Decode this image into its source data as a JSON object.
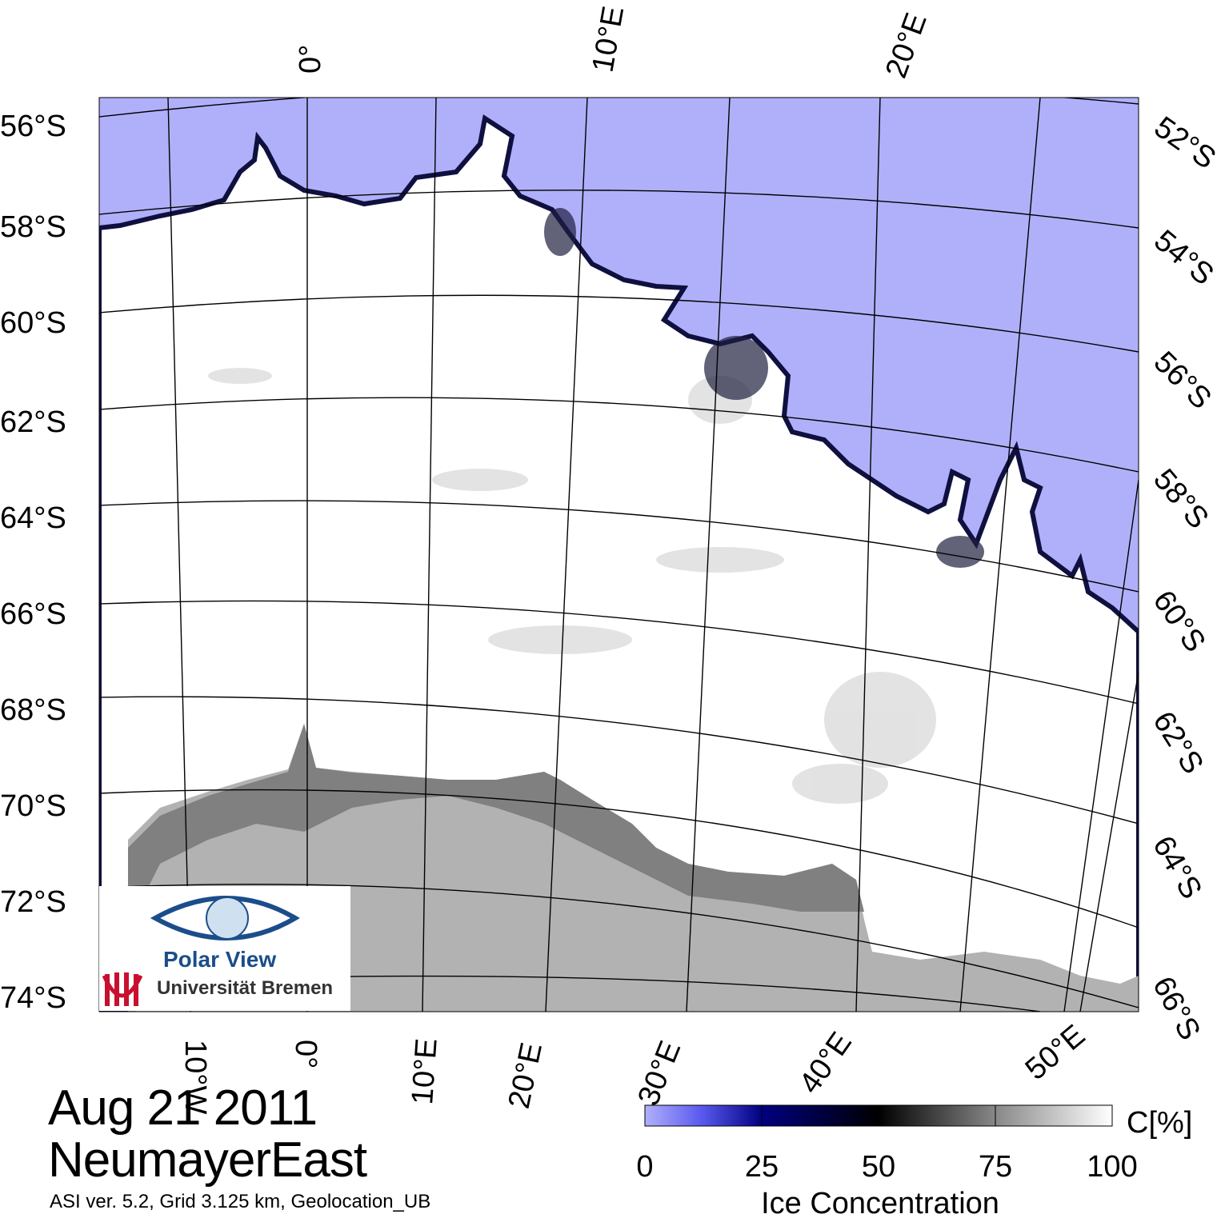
{
  "map": {
    "date_label": "Aug 21 2011",
    "region_label": "NeumayerEast",
    "meta_label": "ASI ver. 5.2,  Grid 3.125 km, Geolocation_UB",
    "latitude_labels_left": [
      "56°S",
      "58°S",
      "60°S",
      "62°S",
      "64°S",
      "66°S",
      "68°S",
      "70°S",
      "72°S",
      "74°S"
    ],
    "latitude_labels_right": [
      "52°S",
      "54°S",
      "56°S",
      "58°S",
      "60°S",
      "62°S",
      "64°S",
      "66°S"
    ],
    "longitude_labels_top": [
      "0°",
      "10°E",
      "20°E"
    ],
    "longitude_labels_bottom": [
      "10°W",
      "0°",
      "10°E",
      "20°E",
      "30°E",
      "40°E",
      "50°E"
    ]
  },
  "colorbar": {
    "unit": "C[%]",
    "title": "Ice Concentration",
    "ticks": [
      "0",
      "25",
      "50",
      "75",
      "100"
    ],
    "colors": {
      "open_water": "#b0b0fa",
      "low": "#5a5af0",
      "mid": "#000060",
      "half": "#000000",
      "high": "#888888",
      "full": "#ffffff"
    }
  },
  "logo": {
    "name": "Polar View",
    "institution": "Universität Bremen",
    "colors": {
      "eye": "#1b4d8a",
      "uni": "#c8102e"
    }
  },
  "legend_colors": {
    "ocean": "#b0b0fa",
    "land": "#b2b2b2",
    "ice_shelf": "#808080",
    "sea_ice": "#ffffff"
  }
}
